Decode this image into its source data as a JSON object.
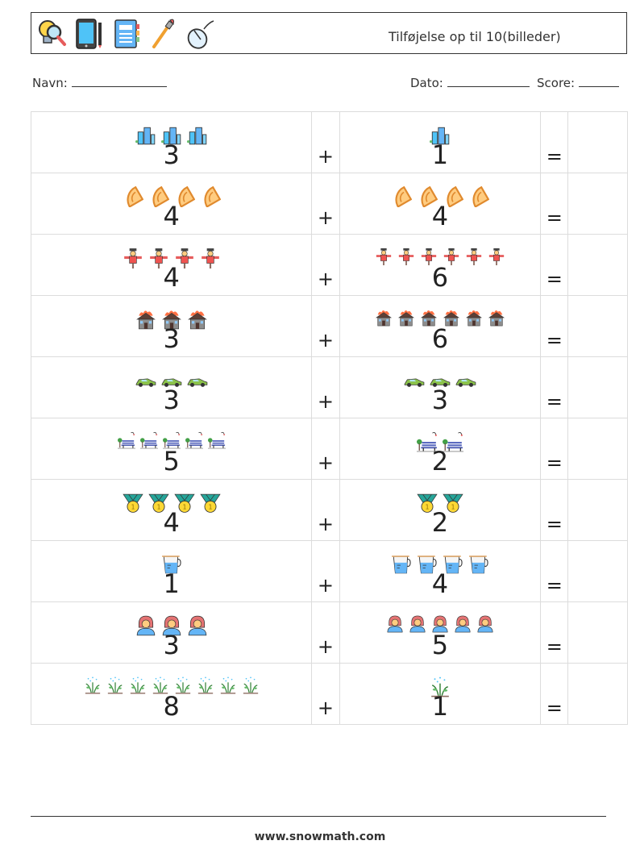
{
  "header": {
    "title": "Tilføjelse op til 10(billeder)",
    "icons": [
      "magnifier-bulb-icon",
      "tablet-icon",
      "notebook-icon",
      "paintbrush-icon",
      "mouse-icon"
    ]
  },
  "info": {
    "name_label": "Navn:",
    "date_label": "Dato:",
    "score_label": "Score:"
  },
  "operators": {
    "plus": "+",
    "equals": "="
  },
  "rows": [
    {
      "a": 3,
      "b": 1,
      "icon": "buildings-icon"
    },
    {
      "a": 4,
      "b": 4,
      "icon": "protractor-icon"
    },
    {
      "a": 4,
      "b": 6,
      "icon": "scarecrow-icon"
    },
    {
      "a": 3,
      "b": 6,
      "icon": "burning-house-icon"
    },
    {
      "a": 3,
      "b": 3,
      "icon": "race-car-icon"
    },
    {
      "a": 5,
      "b": 2,
      "icon": "park-bench-icon"
    },
    {
      "a": 4,
      "b": 2,
      "icon": "medal-icon"
    },
    {
      "a": 1,
      "b": 4,
      "icon": "measuring-jug-icon"
    },
    {
      "a": 3,
      "b": 5,
      "icon": "firefighter-icon"
    },
    {
      "a": 8,
      "b": 1,
      "icon": "sprinkler-plant-icon"
    }
  ],
  "colors": {
    "border": "#dcdcdc",
    "text": "#222222"
  },
  "footer": {
    "website": "www.snowmath.com"
  }
}
